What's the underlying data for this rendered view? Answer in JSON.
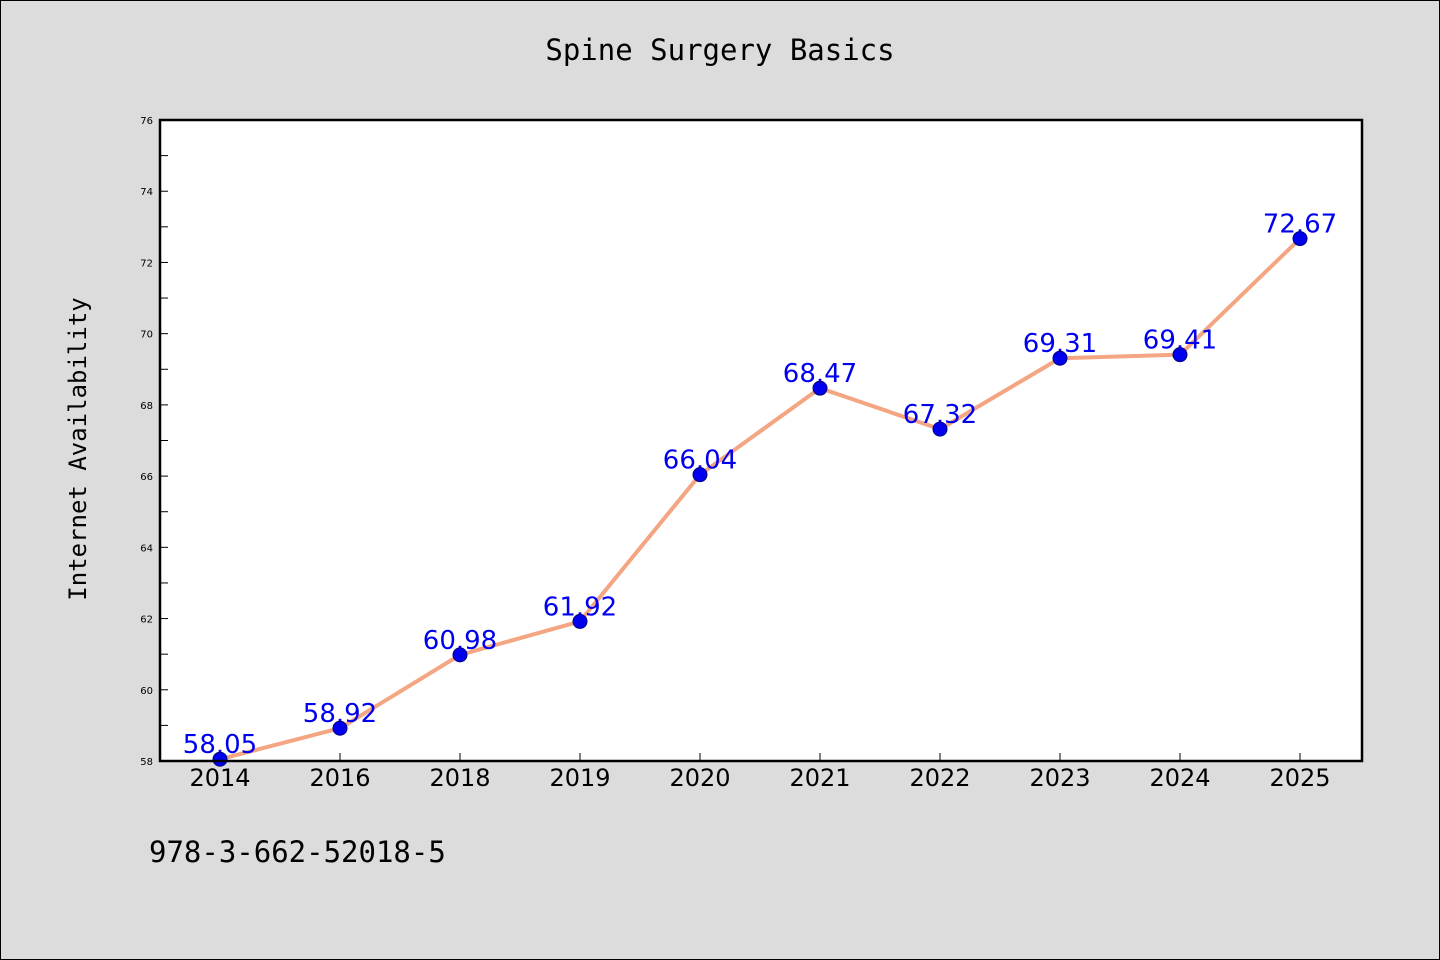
{
  "page": {
    "footer_code": "978-3-662-52018-5"
  },
  "colors": {
    "background": "#dcdcdc",
    "plot_background": "#ffffff",
    "line": "#f4a582",
    "marker": "#0000ee",
    "data_label": "#0000ee"
  },
  "chart_data": {
    "type": "line",
    "title": "Spine Surgery Basics",
    "xlabel": "",
    "ylabel": "Internet Availability",
    "categories": [
      "2014",
      "2016",
      "2018",
      "2019",
      "2020",
      "2021",
      "2022",
      "2023",
      "2024",
      "2025"
    ],
    "series": [
      {
        "values": [
          58.05,
          58.92,
          60.98,
          61.92,
          66.04,
          68.47,
          67.32,
          69.31,
          69.41,
          72.67
        ],
        "labels": [
          "58.05",
          "58.92",
          "60.98",
          "61.92",
          "66.04",
          "68.47",
          "67.32",
          "69.31",
          "69.41",
          "72.67"
        ]
      }
    ],
    "ylim": [
      58,
      76
    ],
    "yticks": [
      "58",
      "60",
      "62",
      "64",
      "66",
      "68",
      "70",
      "72",
      "74",
      "76"
    ],
    "ytick_values": [
      58,
      60,
      62,
      64,
      66,
      68,
      70,
      72,
      74,
      76
    ],
    "minor_step": 1,
    "grid": false,
    "legend": "none"
  }
}
